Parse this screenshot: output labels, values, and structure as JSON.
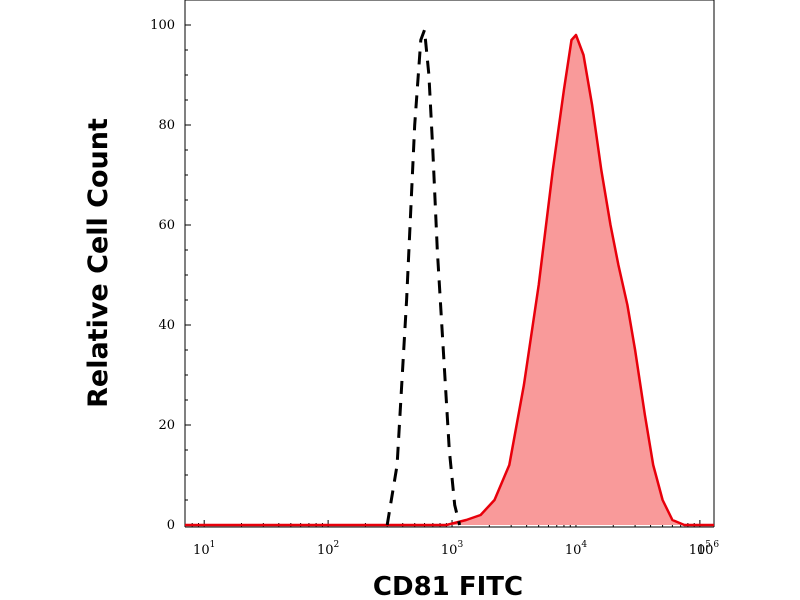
{
  "chart_data": {
    "type": "area",
    "title": "",
    "xlabel": "CD81 FITC",
    "ylabel": "Relative Cell Count",
    "x_scale": "log",
    "xlim": [
      7,
      130000
    ],
    "ylim": [
      0,
      100
    ],
    "x_ticks": [
      {
        "value": 10,
        "base": "10",
        "exp": "1"
      },
      {
        "value": 100,
        "base": "10",
        "exp": "2"
      },
      {
        "value": 1000,
        "base": "10",
        "exp": "3"
      },
      {
        "value": 10000,
        "base": "10",
        "exp": "4"
      },
      {
        "value": 100000,
        "base": "10",
        "exp": "5"
      },
      {
        "value": 1000000,
        "base": "10",
        "exp": "6"
      }
    ],
    "y_ticks": [
      "0",
      "20",
      "40",
      "60",
      "80",
      "100"
    ],
    "grid": false,
    "legend": "none",
    "series": [
      {
        "style": "filled",
        "color": "#e8000b",
        "fill": "#f99a9a",
        "x": [
          7,
          100,
          900,
          1300,
          1700,
          2200,
          2900,
          3800,
          5000,
          6500,
          8000,
          9200,
          10000,
          11500,
          13500,
          16000,
          19000,
          22000,
          26000,
          30000,
          36000,
          42000,
          50000,
          60000,
          75000,
          100000,
          130000
        ],
        "y": [
          0,
          0,
          0,
          1,
          2,
          5,
          12,
          28,
          48,
          71,
          87,
          97,
          98,
          94,
          84,
          71,
          60,
          52,
          44,
          35,
          22,
          12,
          5,
          1,
          0,
          0,
          0
        ]
      },
      {
        "style": "dashed",
        "color": "#000000",
        "x": [
          300,
          360,
          430,
          500,
          560,
          600,
          650,
          700,
          760,
          850,
          950,
          1050,
          1150
        ],
        "y": [
          0,
          12,
          45,
          80,
          97,
          99,
          90,
          75,
          55,
          35,
          15,
          4,
          0
        ]
      }
    ]
  }
}
